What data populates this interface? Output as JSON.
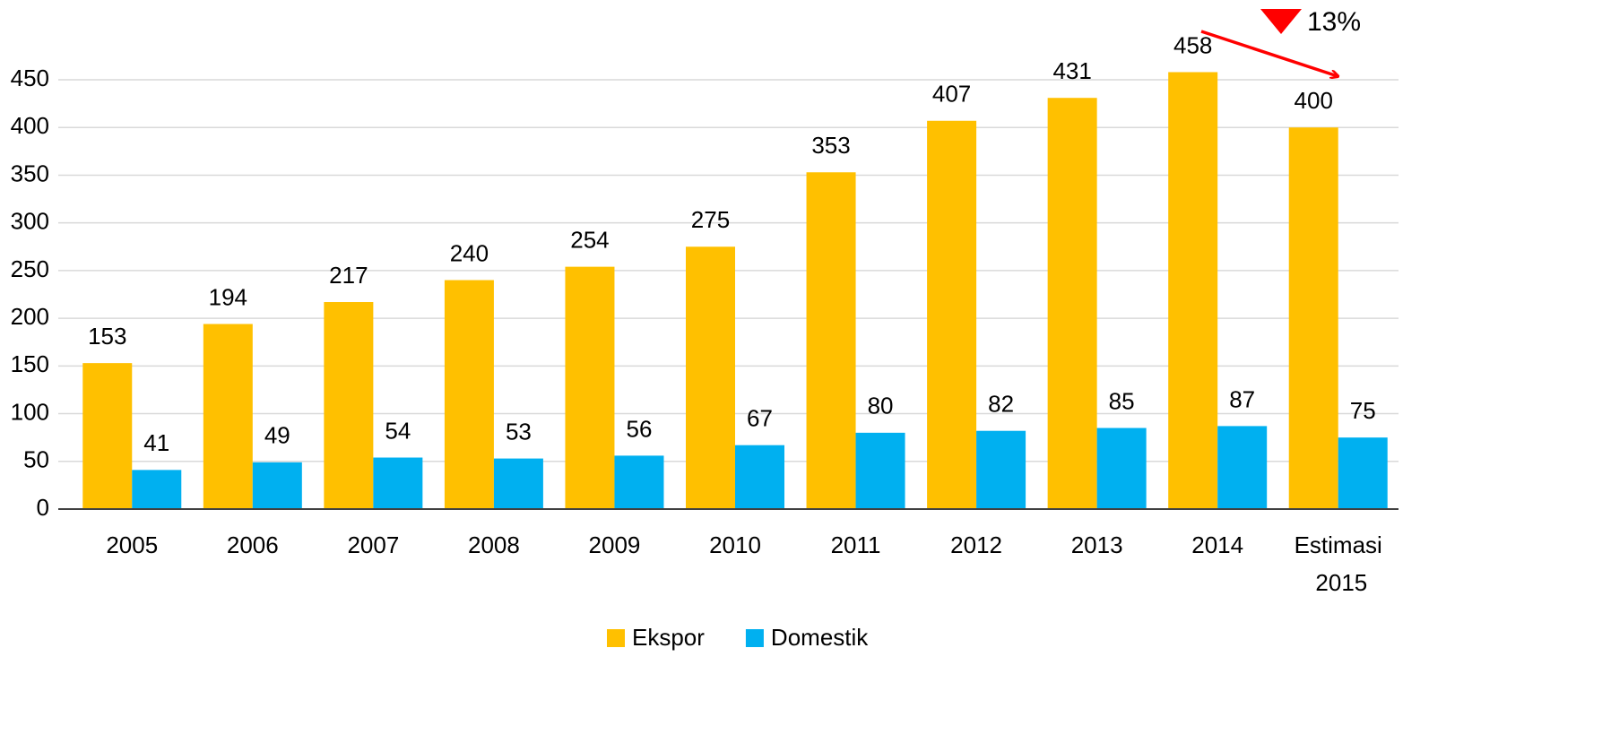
{
  "chart_data": {
    "type": "bar",
    "categories": [
      "2005",
      "2006",
      "2007",
      "2008",
      "2009",
      "2010",
      "2011",
      "2012",
      "2013",
      "2014",
      "Estimasi 2015"
    ],
    "series": [
      {
        "name": "Ekspor",
        "color": "#FFC000",
        "values": [
          153,
          194,
          217,
          240,
          254,
          275,
          353,
          407,
          431,
          458,
          400
        ]
      },
      {
        "name": "Domestik",
        "color": "#00B0F0",
        "values": [
          41,
          49,
          54,
          53,
          56,
          67,
          80,
          82,
          85,
          87,
          75
        ]
      }
    ],
    "ylim": [
      0,
      450
    ],
    "yticks": [
      0,
      50,
      100,
      150,
      200,
      250,
      300,
      350,
      400,
      450
    ],
    "grid": true,
    "legend": "bottom",
    "annotation": "13%"
  }
}
